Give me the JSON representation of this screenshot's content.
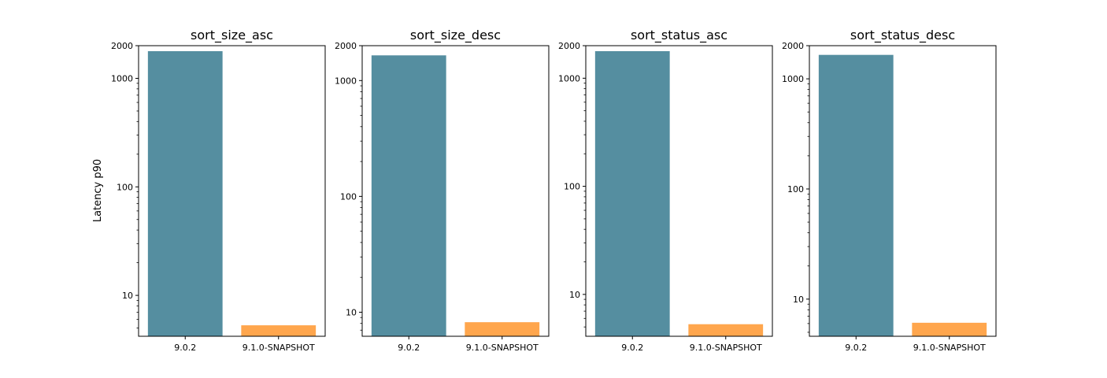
{
  "chart_data": {
    "type": "bar",
    "y_scale": "log",
    "ylabel": "Latency p90",
    "categories": [
      "9.0.2",
      "9.1.0-SNAPSHOT"
    ],
    "colors": [
      "#558ea0",
      "#ffa64d"
    ],
    "grid": false,
    "legend": "none",
    "panels": [
      {
        "title": "sort_size_asc",
        "values": [
          1780,
          5.3
        ],
        "ylim": [
          4.2,
          2000
        ],
        "y_ticks": [
          10,
          100,
          1000,
          2000
        ],
        "y_tick_labels": [
          "10",
          "100",
          "1000",
          "2000"
        ]
      },
      {
        "title": "sort_size_desc",
        "values": [
          1650,
          8.2
        ],
        "ylim": [
          6.2,
          2000
        ],
        "y_ticks": [
          10,
          100,
          1000,
          2000
        ],
        "y_tick_labels": [
          "10",
          "100",
          "1000",
          "2000"
        ]
      },
      {
        "title": "sort_status_asc",
        "values": [
          1780,
          5.3
        ],
        "ylim": [
          4.1,
          2000
        ],
        "y_ticks": [
          10,
          100,
          1000,
          2000
        ],
        "y_tick_labels": [
          "10",
          "100",
          "1000",
          "2000"
        ]
      },
      {
        "title": "sort_status_desc",
        "values": [
          1650,
          6.1
        ],
        "ylim": [
          4.6,
          2000
        ],
        "y_ticks": [
          10,
          100,
          1000,
          2000
        ],
        "y_tick_labels": [
          "10",
          "100",
          "1000",
          "2000"
        ]
      }
    ]
  }
}
